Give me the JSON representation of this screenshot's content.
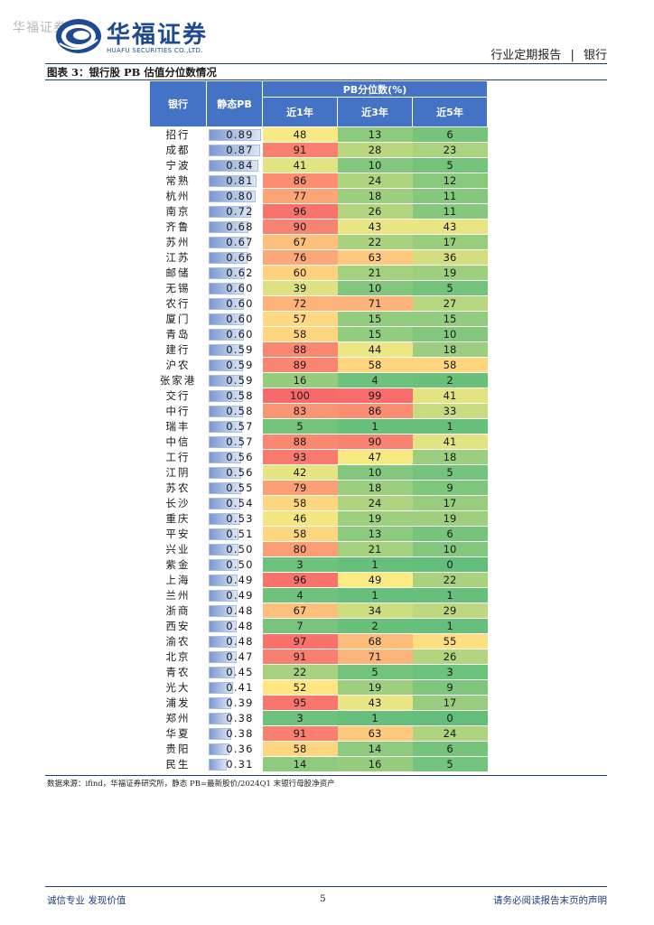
{
  "watermark": "华福证券",
  "logo": {
    "cn": "华福证券",
    "en": "HUAFU SECURITIES CO.,LTD."
  },
  "header": {
    "report_type": "行业定期报告",
    "separator": "|",
    "sector": "银行"
  },
  "figure": {
    "title": "图表 3：银行股 PB 估值分位数情况"
  },
  "table": {
    "col_bank": "银行",
    "col_pb": "静态PB",
    "group_header": "PB分位数(%)",
    "col_1y": "近1年",
    "col_3y": "近3年",
    "col_5y": "近5年",
    "rows": [
      {
        "bank": "招行",
        "pb": "0.89",
        "y1": "48",
        "y3": "13",
        "y5": "6"
      },
      {
        "bank": "成都",
        "pb": "0.87",
        "y1": "91",
        "y3": "28",
        "y5": "23"
      },
      {
        "bank": "宁波",
        "pb": "0.84",
        "y1": "41",
        "y3": "10",
        "y5": "5"
      },
      {
        "bank": "常熟",
        "pb": "0.81",
        "y1": "86",
        "y3": "24",
        "y5": "12"
      },
      {
        "bank": "杭州",
        "pb": "0.80",
        "y1": "77",
        "y3": "18",
        "y5": "11"
      },
      {
        "bank": "南京",
        "pb": "0.72",
        "y1": "96",
        "y3": "26",
        "y5": "11"
      },
      {
        "bank": "齐鲁",
        "pb": "0.68",
        "y1": "90",
        "y3": "43",
        "y5": "43"
      },
      {
        "bank": "苏州",
        "pb": "0.67",
        "y1": "67",
        "y3": "22",
        "y5": "17"
      },
      {
        "bank": "江苏",
        "pb": "0.66",
        "y1": "76",
        "y3": "63",
        "y5": "36"
      },
      {
        "bank": "邮储",
        "pb": "0.62",
        "y1": "60",
        "y3": "21",
        "y5": "19"
      },
      {
        "bank": "无锡",
        "pb": "0.60",
        "y1": "39",
        "y3": "10",
        "y5": "5"
      },
      {
        "bank": "农行",
        "pb": "0.60",
        "y1": "72",
        "y3": "71",
        "y5": "27"
      },
      {
        "bank": "厦门",
        "pb": "0.60",
        "y1": "57",
        "y3": "15",
        "y5": "15"
      },
      {
        "bank": "青岛",
        "pb": "0.60",
        "y1": "58",
        "y3": "15",
        "y5": "10"
      },
      {
        "bank": "建行",
        "pb": "0.59",
        "y1": "88",
        "y3": "44",
        "y5": "18"
      },
      {
        "bank": "沪农",
        "pb": "0.59",
        "y1": "89",
        "y3": "58",
        "y5": "58"
      },
      {
        "bank": "张家港",
        "pb": "0.59",
        "y1": "16",
        "y3": "4",
        "y5": "2"
      },
      {
        "bank": "交行",
        "pb": "0.58",
        "y1": "100",
        "y3": "99",
        "y5": "41"
      },
      {
        "bank": "中行",
        "pb": "0.58",
        "y1": "83",
        "y3": "86",
        "y5": "33"
      },
      {
        "bank": "瑞丰",
        "pb": "0.57",
        "y1": "5",
        "y3": "1",
        "y5": "1"
      },
      {
        "bank": "中信",
        "pb": "0.57",
        "y1": "88",
        "y3": "90",
        "y5": "41"
      },
      {
        "bank": "工行",
        "pb": "0.56",
        "y1": "93",
        "y3": "47",
        "y5": "18"
      },
      {
        "bank": "江阴",
        "pb": "0.56",
        "y1": "42",
        "y3": "10",
        "y5": "5"
      },
      {
        "bank": "苏农",
        "pb": "0.55",
        "y1": "79",
        "y3": "18",
        "y5": "9"
      },
      {
        "bank": "长沙",
        "pb": "0.54",
        "y1": "58",
        "y3": "24",
        "y5": "17"
      },
      {
        "bank": "重庆",
        "pb": "0.53",
        "y1": "46",
        "y3": "19",
        "y5": "19"
      },
      {
        "bank": "平安",
        "pb": "0.51",
        "y1": "58",
        "y3": "13",
        "y5": "6"
      },
      {
        "bank": "兴业",
        "pb": "0.50",
        "y1": "80",
        "y3": "21",
        "y5": "10"
      },
      {
        "bank": "紫金",
        "pb": "0.50",
        "y1": "3",
        "y3": "1",
        "y5": "0"
      },
      {
        "bank": "上海",
        "pb": "0.49",
        "y1": "96",
        "y3": "49",
        "y5": "22"
      },
      {
        "bank": "兰州",
        "pb": "0.49",
        "y1": "4",
        "y3": "1",
        "y5": "1"
      },
      {
        "bank": "浙商",
        "pb": "0.48",
        "y1": "67",
        "y3": "34",
        "y5": "29"
      },
      {
        "bank": "西安",
        "pb": "0.48",
        "y1": "7",
        "y3": "2",
        "y5": "1"
      },
      {
        "bank": "渝农",
        "pb": "0.48",
        "y1": "97",
        "y3": "68",
        "y5": "55"
      },
      {
        "bank": "北京",
        "pb": "0.47",
        "y1": "91",
        "y3": "71",
        "y5": "26"
      },
      {
        "bank": "青农",
        "pb": "0.45",
        "y1": "22",
        "y3": "5",
        "y5": "3"
      },
      {
        "bank": "光大",
        "pb": "0.41",
        "y1": "52",
        "y3": "19",
        "y5": "9"
      },
      {
        "bank": "浦发",
        "pb": "0.39",
        "y1": "95",
        "y3": "43",
        "y5": "17"
      },
      {
        "bank": "郑州",
        "pb": "0.38",
        "y1": "3",
        "y3": "1",
        "y5": "0"
      },
      {
        "bank": "华夏",
        "pb": "0.38",
        "y1": "91",
        "y3": "63",
        "y5": "24"
      },
      {
        "bank": "贵阳",
        "pb": "0.36",
        "y1": "58",
        "y3": "14",
        "y5": "6"
      },
      {
        "bank": "民生",
        "pb": "0.31",
        "y1": "14",
        "y3": "16",
        "y5": "5"
      }
    ]
  },
  "source": "数据来源：ifind，华福证券研究所，静态 PB=最新股价/2024Q1 末银行母股净资产",
  "footer": {
    "left": "诚信专业  发现价值",
    "page": "5",
    "right": "请务必阅读报告末页的声明"
  },
  "colors": {
    "header_blue": "#4472c4",
    "low": "#63be7b",
    "mid": "#ffeb84",
    "high": "#f8696b"
  }
}
